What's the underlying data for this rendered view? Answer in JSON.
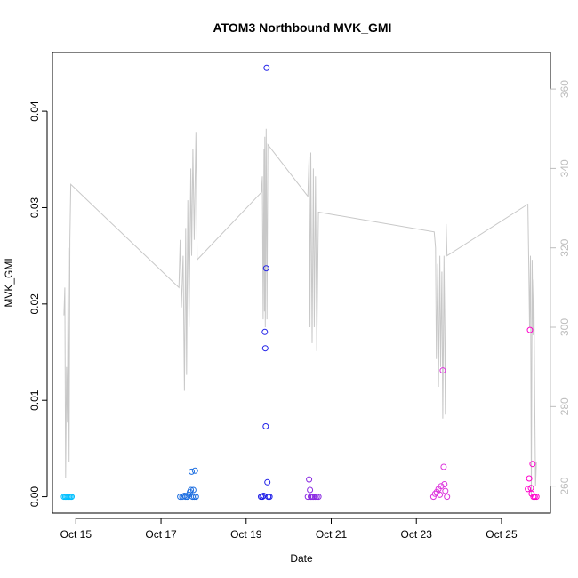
{
  "chart_data": {
    "type": "scatter",
    "title": "ATOM3 Northbound MVK_GMI",
    "xlabel": "Date",
    "ylabel": "MVK_GMI",
    "x_ticks": [
      "Oct 15",
      "Oct 17",
      "Oct 19",
      "Oct 21",
      "Oct 23",
      "Oct 25"
    ],
    "x_tick_days": [
      15,
      17,
      19,
      21,
      23,
      25
    ],
    "xlim": [
      14.45,
      26.15
    ],
    "y_ticks": [
      "0.00",
      "0.01",
      "0.02",
      "0.03",
      "0.04"
    ],
    "y_tick_values": [
      0,
      0.01,
      0.02,
      0.03,
      0.04
    ],
    "ylim": [
      -0.0017,
      0.0461
    ],
    "y2_ticks": [
      "260",
      "280",
      "300",
      "320",
      "340",
      "360"
    ],
    "y2_tick_values": [
      260,
      280,
      300,
      320,
      340,
      360
    ],
    "y2lim": [
      253.2,
      369.2
    ],
    "grid": false,
    "colors": {
      "points": [
        "#00BFFF",
        "#1E6FE0",
        "#2020E8",
        "#8A2BE2",
        "#DD33DD",
        "#FF00CC"
      ],
      "line": "#c8c8c8",
      "right_axis": "#bdbdbd"
    },
    "points": [
      {
        "x": 14.72,
        "y": 0.0
      },
      {
        "x": 14.75,
        "y": 0.0
      },
      {
        "x": 14.78,
        "y": 0.0
      },
      {
        "x": 14.81,
        "y": 0.0
      },
      {
        "x": 14.84,
        "y": 0.0
      },
      {
        "x": 14.87,
        "y": 0.0
      },
      {
        "x": 14.9,
        "y": 0.0
      },
      {
        "x": 17.45,
        "y": 0.0
      },
      {
        "x": 17.5,
        "y": 0.0
      },
      {
        "x": 17.55,
        "y": 0.0001
      },
      {
        "x": 17.58,
        "y": 0.0
      },
      {
        "x": 17.62,
        "y": 0.0
      },
      {
        "x": 17.65,
        "y": 0.0002
      },
      {
        "x": 17.68,
        "y": 0.0005
      },
      {
        "x": 17.7,
        "y": 0.0007
      },
      {
        "x": 17.72,
        "y": 0.0026
      },
      {
        "x": 17.74,
        "y": 0.0
      },
      {
        "x": 17.76,
        "y": 0.0007
      },
      {
        "x": 17.78,
        "y": 0.0
      },
      {
        "x": 17.8,
        "y": 0.0027
      },
      {
        "x": 17.82,
        "y": 0.0
      },
      {
        "x": 19.35,
        "y": 0.0
      },
      {
        "x": 19.38,
        "y": 0.0
      },
      {
        "x": 19.41,
        "y": 0.0001
      },
      {
        "x": 19.44,
        "y": 0.0171
      },
      {
        "x": 19.45,
        "y": 0.0154
      },
      {
        "x": 19.46,
        "y": 0.0073
      },
      {
        "x": 19.47,
        "y": 0.0237
      },
      {
        "x": 19.48,
        "y": 0.0445
      },
      {
        "x": 19.5,
        "y": 0.0015
      },
      {
        "x": 19.52,
        "y": 0.0
      },
      {
        "x": 19.55,
        "y": 0.0
      },
      {
        "x": 20.45,
        "y": 0.0
      },
      {
        "x": 20.48,
        "y": 0.0018
      },
      {
        "x": 20.5,
        "y": 0.0007
      },
      {
        "x": 20.52,
        "y": 0.0
      },
      {
        "x": 20.55,
        "y": 0.0
      },
      {
        "x": 20.58,
        "y": 0.0
      },
      {
        "x": 20.62,
        "y": 0.0
      },
      {
        "x": 20.66,
        "y": 0.0
      },
      {
        "x": 20.7,
        "y": 0.0
      },
      {
        "x": 23.4,
        "y": 0.0
      },
      {
        "x": 23.44,
        "y": 0.0003
      },
      {
        "x": 23.48,
        "y": 0.0005
      },
      {
        "x": 23.52,
        "y": 0.0008
      },
      {
        "x": 23.55,
        "y": 0.0002
      },
      {
        "x": 23.58,
        "y": 0.0011
      },
      {
        "x": 23.62,
        "y": 0.0131
      },
      {
        "x": 23.64,
        "y": 0.0031
      },
      {
        "x": 23.66,
        "y": 0.0013
      },
      {
        "x": 23.68,
        "y": 0.0006
      },
      {
        "x": 23.72,
        "y": 0.0
      },
      {
        "x": 25.62,
        "y": 0.0008
      },
      {
        "x": 25.65,
        "y": 0.0019
      },
      {
        "x": 25.67,
        "y": 0.0173
      },
      {
        "x": 25.69,
        "y": 0.0009
      },
      {
        "x": 25.71,
        "y": 0.0003
      },
      {
        "x": 25.73,
        "y": 0.0034
      },
      {
        "x": 25.75,
        "y": 0.0
      },
      {
        "x": 25.78,
        "y": 0.0
      },
      {
        "x": 25.82,
        "y": 0.0
      }
    ],
    "line_y2": [
      [
        14.72,
        303
      ],
      [
        14.74,
        310
      ],
      [
        14.76,
        262
      ],
      [
        14.78,
        290
      ],
      [
        14.8,
        276
      ],
      [
        14.82,
        320
      ],
      [
        14.84,
        266
      ],
      [
        14.86,
        322
      ],
      [
        14.88,
        336
      ],
      [
        17.42,
        310
      ],
      [
        17.45,
        322
      ],
      [
        17.48,
        305
      ],
      [
        17.52,
        318
      ],
      [
        17.55,
        284
      ],
      [
        17.58,
        325
      ],
      [
        17.6,
        288
      ],
      [
        17.63,
        332
      ],
      [
        17.66,
        300
      ],
      [
        17.7,
        340
      ],
      [
        17.72,
        318
      ],
      [
        17.75,
        345
      ],
      [
        17.78,
        322
      ],
      [
        17.82,
        349
      ],
      [
        17.85,
        317
      ],
      [
        19.36,
        334
      ],
      [
        19.38,
        338
      ],
      [
        19.4,
        302
      ],
      [
        19.42,
        345
      ],
      [
        19.43,
        304
      ],
      [
        19.44,
        348
      ],
      [
        19.45,
        300
      ],
      [
        19.47,
        350
      ],
      [
        19.49,
        302
      ],
      [
        19.51,
        346
      ],
      [
        20.45,
        333
      ],
      [
        20.48,
        343
      ],
      [
        20.5,
        300
      ],
      [
        20.52,
        344
      ],
      [
        20.55,
        296
      ],
      [
        20.58,
        340
      ],
      [
        20.6,
        300
      ],
      [
        20.63,
        338
      ],
      [
        20.66,
        294
      ],
      [
        20.7,
        329
      ],
      [
        23.42,
        324
      ],
      [
        23.45,
        320
      ],
      [
        23.47,
        292
      ],
      [
        23.5,
        316
      ],
      [
        23.52,
        285
      ],
      [
        23.55,
        318
      ],
      [
        23.57,
        290
      ],
      [
        23.6,
        314
      ],
      [
        23.62,
        277
      ],
      [
        23.65,
        318
      ],
      [
        23.68,
        278
      ],
      [
        23.7,
        326
      ],
      [
        23.72,
        318
      ],
      [
        25.62,
        331
      ],
      [
        25.64,
        316
      ],
      [
        25.66,
        300
      ],
      [
        25.68,
        318
      ],
      [
        25.7,
        258
      ],
      [
        25.72,
        317
      ],
      [
        25.74,
        298
      ],
      [
        25.76,
        312
      ],
      [
        25.78,
        282
      ],
      [
        25.8,
        260
      ],
      [
        25.82,
        266
      ]
    ]
  }
}
